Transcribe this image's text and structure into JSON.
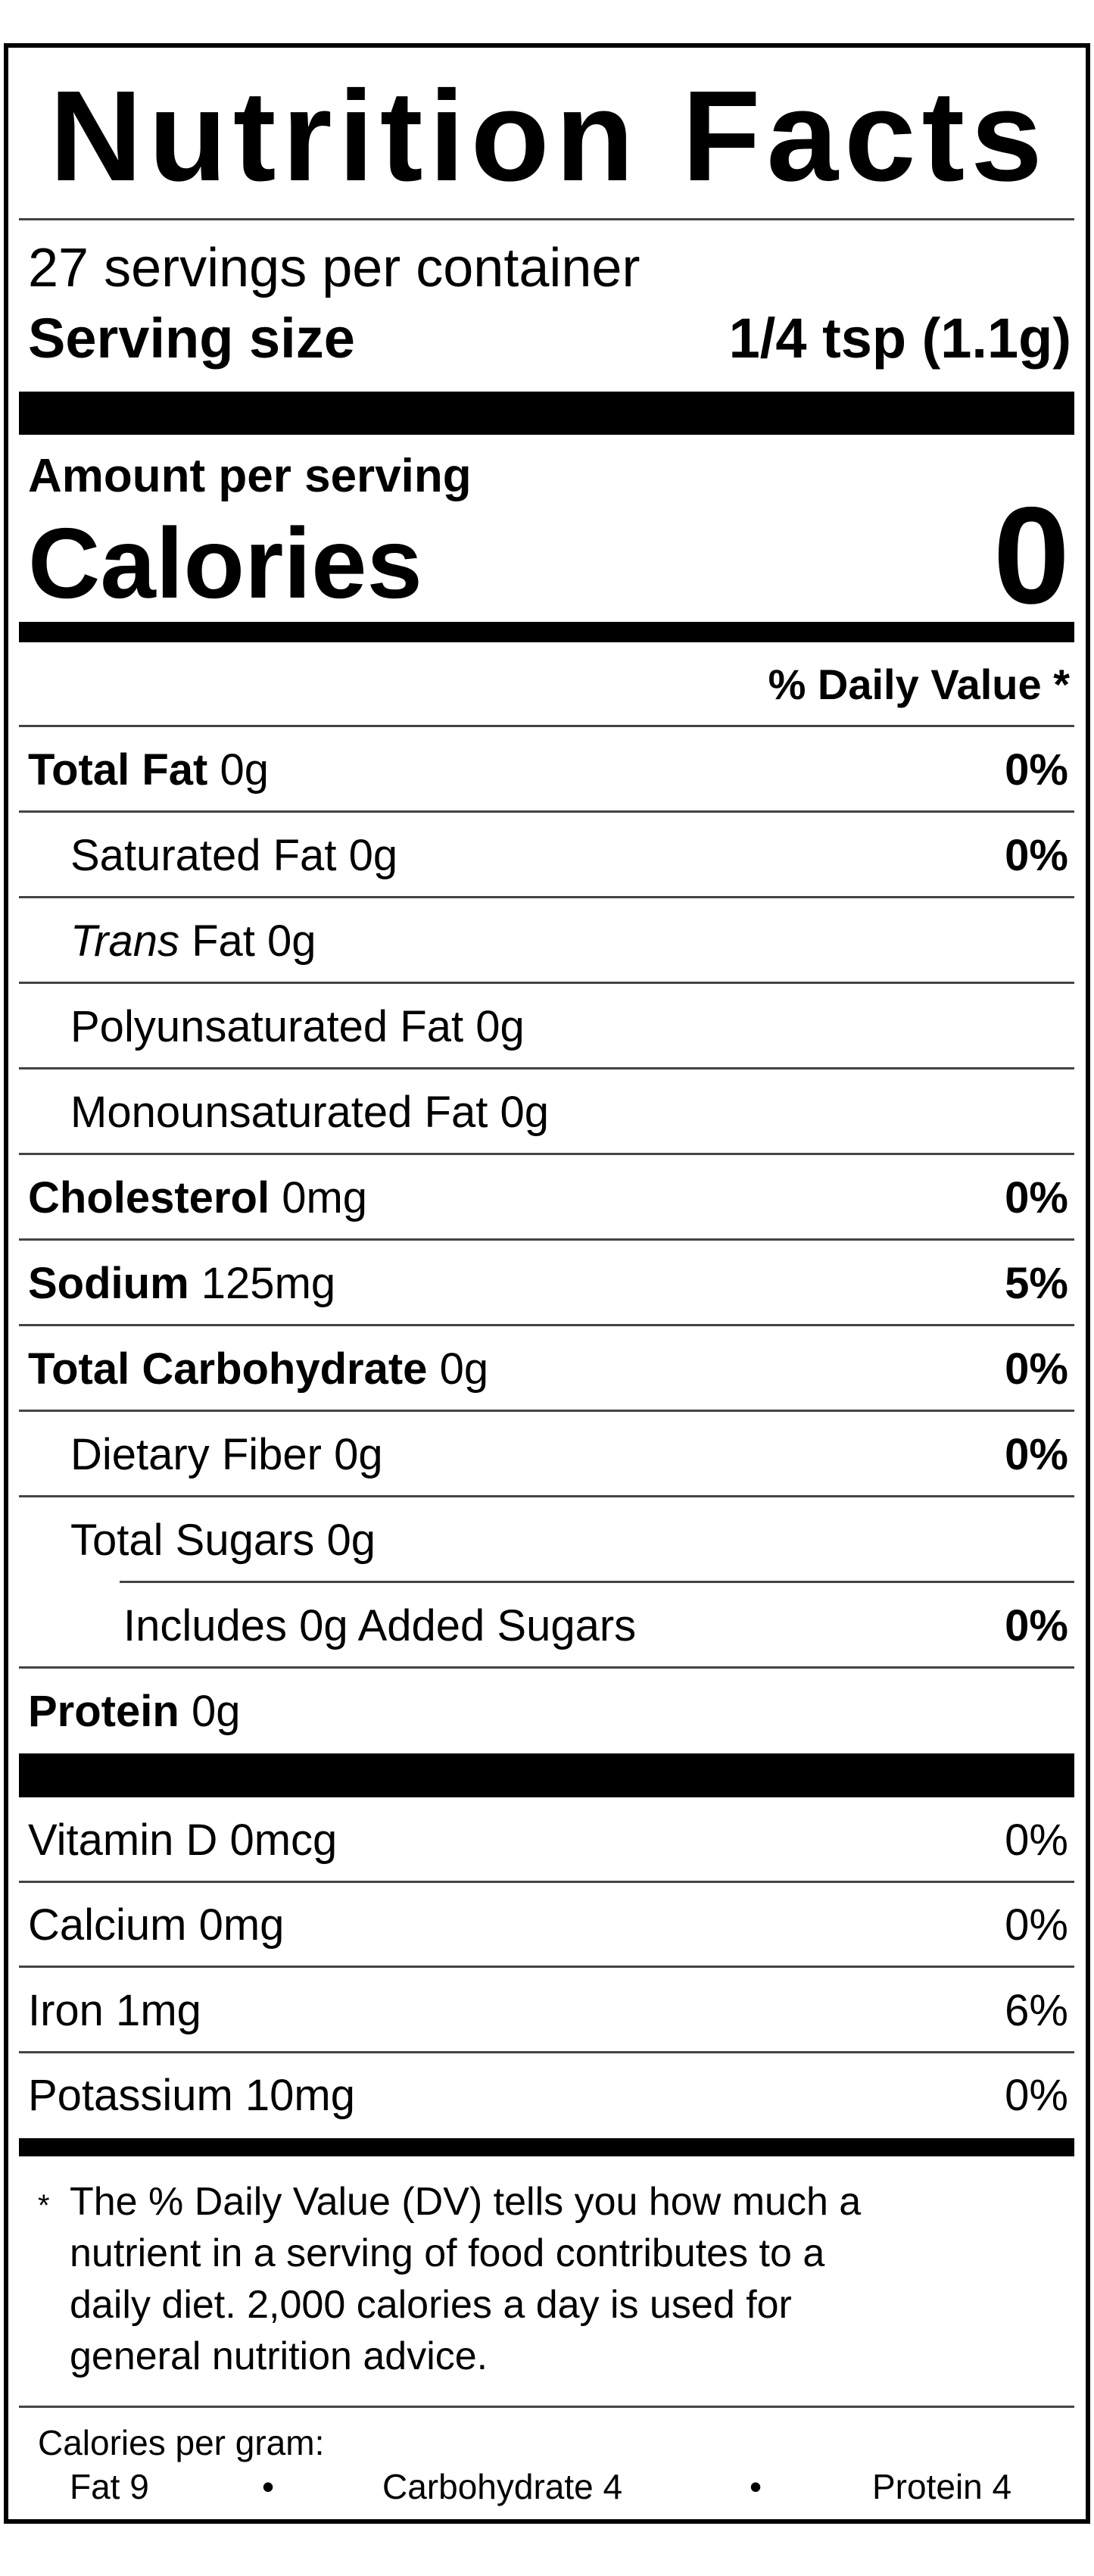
{
  "title": "Nutrition Facts",
  "servings_per_container": "27 servings per container",
  "serving_size": {
    "label": "Serving size",
    "value": "1/4 tsp (1.1g)"
  },
  "amount_per_serving": "Amount per serving",
  "calories": {
    "label": "Calories",
    "value": "0"
  },
  "daily_value_header": "% Daily Value *",
  "nutrients": [
    {
      "name": "Total Fat",
      "amount": "0g",
      "dv": "0%",
      "bold": true,
      "indent": 0
    },
    {
      "name": "Saturated Fat",
      "amount": "0g",
      "dv": "0%",
      "bold": false,
      "indent": 1
    },
    {
      "name": "Trans",
      "name_suffix": "Fat",
      "amount": "0g",
      "dv": "",
      "bold": false,
      "indent": 1,
      "italic_prefix": true
    },
    {
      "name": "Polyunsaturated Fat",
      "amount": "0g",
      "dv": "",
      "bold": false,
      "indent": 1
    },
    {
      "name": "Monounsaturated Fat",
      "amount": "0g",
      "dv": "",
      "bold": false,
      "indent": 1
    },
    {
      "name": "Cholesterol",
      "amount": "0mg",
      "dv": "0%",
      "bold": true,
      "indent": 0
    },
    {
      "name": "Sodium",
      "amount": "125mg",
      "dv": "5%",
      "bold": true,
      "indent": 0
    },
    {
      "name": "Total Carbohydrate",
      "amount": "0g",
      "dv": "0%",
      "bold": true,
      "indent": 0
    },
    {
      "name": "Dietary Fiber",
      "amount": "0g",
      "dv": "0%",
      "bold": false,
      "indent": 1
    },
    {
      "name": "Total Sugars",
      "amount": "0g",
      "dv": "",
      "bold": false,
      "indent": 1
    },
    {
      "name": "Includes 0g Added Sugars",
      "amount": "",
      "dv": "0%",
      "bold": false,
      "indent": 2
    },
    {
      "name": "Protein",
      "amount": "0g",
      "dv": "",
      "bold": true,
      "indent": 0
    }
  ],
  "vitamins": [
    {
      "name": "Vitamin D 0mcg",
      "dv": "0%"
    },
    {
      "name": "Calcium 0mg",
      "dv": "0%"
    },
    {
      "name": "Iron 1mg",
      "dv": "6%"
    },
    {
      "name": "Potassium 10mg",
      "dv": "0%"
    }
  ],
  "footnote": {
    "asterisk": "*",
    "lines": [
      "The % Daily Value (DV) tells you how much a",
      "nutrient in a serving of food contributes to a",
      "daily diet. 2,000 calories a day is used for",
      "general nutrition advice."
    ]
  },
  "calories_per_gram": {
    "label": "Calories per gram:",
    "fat": "Fat 9",
    "carbohydrate": "Carbohydrate 4",
    "protein": "Protein 4",
    "separator": "•"
  }
}
